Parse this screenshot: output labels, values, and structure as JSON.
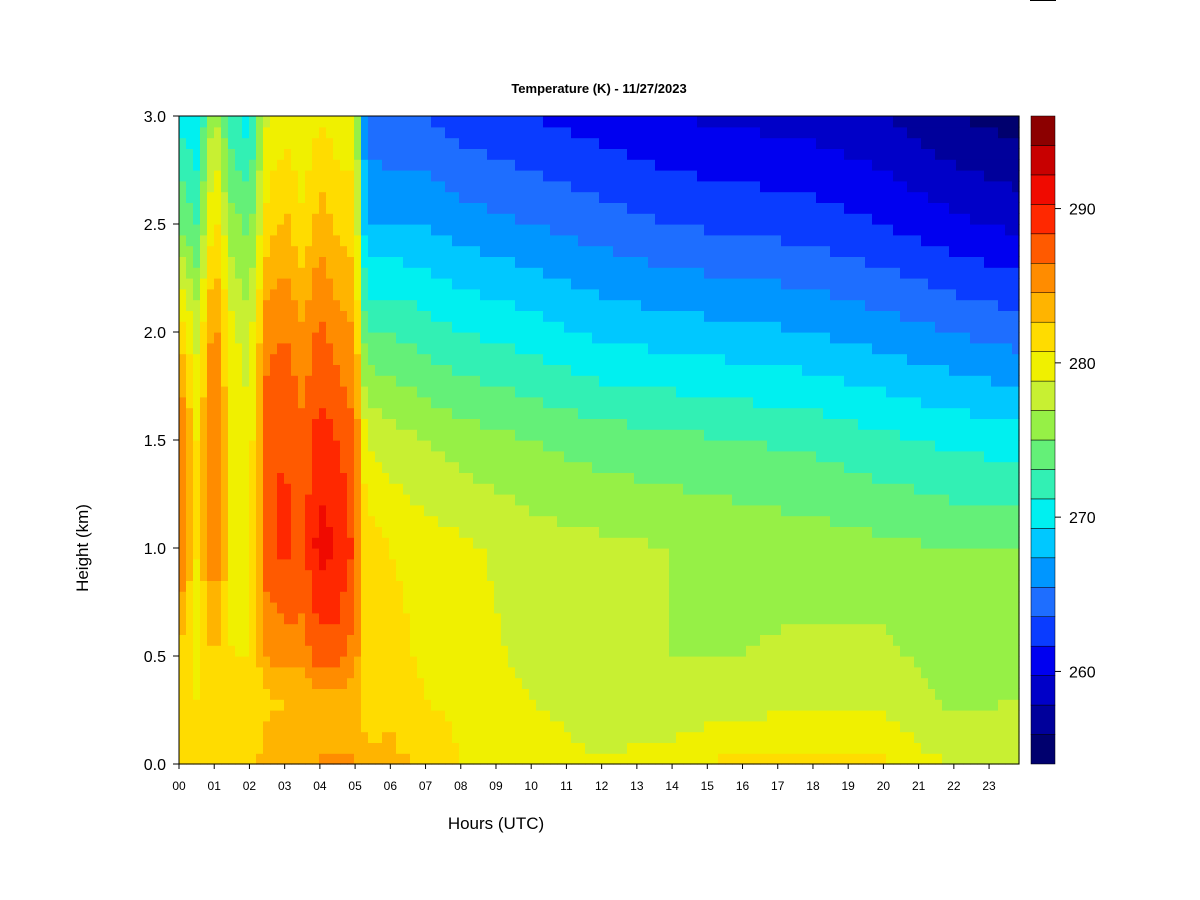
{
  "chart_data": {
    "type": "heatmap",
    "title": "Temperature (K) - 11/27/2023",
    "xlabel": "Hours (UTC)",
    "ylabel": "Height (km)",
    "x_unit": "hours UTC",
    "xlim": [
      0,
      23.85
    ],
    "ylim": [
      0.0,
      3.0
    ],
    "x_ticks": [
      "00",
      "01",
      "02",
      "03",
      "04",
      "05",
      "06",
      "07",
      "08",
      "09",
      "10",
      "11",
      "12",
      "13",
      "14",
      "15",
      "16",
      "17",
      "18",
      "19",
      "20",
      "21",
      "22",
      "23"
    ],
    "y_ticks": [
      "0.0",
      "0.5",
      "1.0",
      "1.5",
      "2.0",
      "2.5",
      "3.0"
    ],
    "colorbar": {
      "label": "Temperature (K)",
      "range": [
        254,
        296
      ],
      "step": 2,
      "ticks": [
        260,
        270,
        280,
        290
      ],
      "colors": [
        "#00006e",
        "#00009b",
        "#0000c8",
        "#0000f0",
        "#0a3cff",
        "#1e6eff",
        "#0096ff",
        "#00c8ff",
        "#00f0f0",
        "#32f0b4",
        "#64f078",
        "#96f046",
        "#c8f032",
        "#f0f000",
        "#ffdc00",
        "#ffb400",
        "#ff8c00",
        "#ff5a00",
        "#ff2800",
        "#f00a00",
        "#c80000",
        "#8c0000"
      ]
    },
    "columns": [
      {
        "hour": 0.0,
        "surface": 283.0,
        "levels": [
          [
            0.0,
            283.0
          ],
          [
            0.3,
            282.0
          ],
          [
            0.5,
            283.5
          ],
          [
            1.0,
            289.0
          ],
          [
            1.5,
            289.5
          ],
          [
            2.0,
            284.0
          ],
          [
            2.5,
            276.0
          ],
          [
            3.0,
            271.5
          ]
        ]
      },
      {
        "hour": 0.5,
        "surface": 283.0,
        "levels": [
          [
            0.0,
            283.0
          ],
          [
            0.3,
            282.0
          ],
          [
            0.5,
            281.5
          ],
          [
            1.0,
            282.0
          ],
          [
            1.5,
            282.0
          ],
          [
            2.0,
            279.5
          ],
          [
            2.5,
            274.0
          ],
          [
            3.0,
            270.0
          ]
        ]
      },
      {
        "hour": 1.0,
        "surface": 283.0,
        "levels": [
          [
            0.0,
            283.0
          ],
          [
            0.3,
            282.5
          ],
          [
            0.5,
            284.0
          ],
          [
            1.0,
            288.5
          ],
          [
            1.5,
            289.0
          ],
          [
            2.0,
            287.5
          ],
          [
            2.5,
            283.0
          ],
          [
            3.0,
            279.0
          ]
        ]
      },
      {
        "hour": 1.5,
        "surface": 283.0,
        "levels": [
          [
            0.0,
            283.0
          ],
          [
            0.3,
            282.0
          ],
          [
            0.5,
            282.0
          ],
          [
            1.0,
            281.5
          ],
          [
            1.5,
            281.5
          ],
          [
            2.0,
            280.5
          ],
          [
            2.5,
            277.0
          ],
          [
            3.0,
            272.5
          ]
        ]
      },
      {
        "hour": 2.0,
        "surface": 283.0,
        "levels": [
          [
            0.0,
            283.0
          ],
          [
            0.3,
            282.0
          ],
          [
            0.5,
            282.0
          ],
          [
            1.0,
            281.0
          ],
          [
            1.5,
            280.5
          ],
          [
            2.0,
            279.0
          ],
          [
            2.5,
            275.0
          ],
          [
            3.0,
            271.0
          ]
        ]
      },
      {
        "hour": 2.5,
        "surface": 285.0,
        "levels": [
          [
            0.0,
            285.0
          ],
          [
            0.3,
            283.5
          ],
          [
            0.5,
            286.0
          ],
          [
            1.0,
            289.5
          ],
          [
            1.5,
            289.5
          ],
          [
            2.0,
            287.5
          ],
          [
            2.5,
            283.0
          ],
          [
            3.0,
            280.0
          ]
        ]
      },
      {
        "hour": 3.0,
        "surface": 285.0,
        "levels": [
          [
            0.0,
            285.0
          ],
          [
            0.3,
            284.0
          ],
          [
            0.5,
            287.0
          ],
          [
            1.0,
            290.5
          ],
          [
            1.5,
            290.0
          ],
          [
            2.0,
            288.0
          ],
          [
            2.5,
            284.5
          ],
          [
            3.0,
            281.0
          ]
        ]
      },
      {
        "hour": 3.5,
        "surface": 285.0,
        "levels": [
          [
            0.0,
            285.0
          ],
          [
            0.3,
            284.0
          ],
          [
            0.5,
            287.0
          ],
          [
            1.0,
            289.5
          ],
          [
            1.5,
            288.5
          ],
          [
            2.0,
            286.5
          ],
          [
            2.5,
            282.5
          ],
          [
            3.0,
            280.0
          ]
        ]
      },
      {
        "hour": 4.0,
        "surface": 286.0,
        "levels": [
          [
            0.0,
            286.0
          ],
          [
            0.3,
            285.0
          ],
          [
            0.5,
            289.0
          ],
          [
            1.0,
            293.0
          ],
          [
            1.5,
            291.0
          ],
          [
            2.0,
            288.5
          ],
          [
            2.5,
            285.0
          ],
          [
            3.0,
            282.0
          ]
        ]
      },
      {
        "hour": 4.5,
        "surface": 286.0,
        "levels": [
          [
            0.0,
            286.0
          ],
          [
            0.3,
            285.0
          ],
          [
            0.5,
            289.0
          ],
          [
            1.0,
            292.0
          ],
          [
            1.5,
            290.0
          ],
          [
            2.0,
            287.0
          ],
          [
            2.5,
            283.5
          ],
          [
            3.0,
            281.0
          ]
        ]
      },
      {
        "hour": 5.0,
        "surface": 286.0,
        "levels": [
          [
            0.0,
            286.0
          ],
          [
            0.3,
            285.0
          ],
          [
            0.5,
            287.0
          ],
          [
            1.0,
            289.5
          ],
          [
            1.5,
            288.5
          ],
          [
            2.0,
            286.0
          ],
          [
            2.5,
            283.0
          ],
          [
            3.0,
            280.5
          ]
        ]
      },
      {
        "hour": 5.3,
        "surface": 284.5,
        "levels": [
          [
            0.0,
            284.5
          ],
          [
            0.3,
            283.0
          ],
          [
            0.5,
            283.0
          ],
          [
            1.0,
            283.0
          ],
          [
            1.5,
            280.0
          ],
          [
            2.0,
            274.0
          ],
          [
            2.5,
            268.0
          ],
          [
            3.0,
            265.0
          ]
        ]
      },
      {
        "hour": 6.0,
        "surface": 284.5,
        "levels": [
          [
            0.0,
            284.5
          ],
          [
            0.3,
            283.5
          ],
          [
            0.5,
            283.0
          ],
          [
            1.0,
            282.0
          ],
          [
            1.5,
            279.0
          ],
          [
            2.0,
            274.0
          ],
          [
            2.5,
            268.0
          ],
          [
            3.0,
            264.0
          ]
        ]
      },
      {
        "hour": 7.0,
        "surface": 283.5,
        "levels": [
          [
            0.0,
            283.5
          ],
          [
            0.3,
            282.0
          ],
          [
            0.5,
            281.5
          ],
          [
            1.0,
            281.0
          ],
          [
            1.5,
            278.0
          ],
          [
            2.0,
            273.0
          ],
          [
            2.5,
            268.0
          ],
          [
            3.0,
            264.0
          ]
        ]
      },
      {
        "hour": 8.0,
        "surface": 282.0,
        "levels": [
          [
            0.0,
            282.0
          ],
          [
            0.3,
            281.5
          ],
          [
            0.5,
            281.0
          ],
          [
            1.0,
            280.5
          ],
          [
            1.5,
            277.0
          ],
          [
            2.0,
            272.0
          ],
          [
            2.5,
            267.0
          ],
          [
            3.0,
            263.0
          ]
        ]
      },
      {
        "hour": 10.0,
        "surface": 281.0,
        "levels": [
          [
            0.0,
            281.0
          ],
          [
            0.3,
            280.0
          ],
          [
            0.5,
            279.5
          ],
          [
            1.0,
            279.0
          ],
          [
            1.5,
            276.0
          ],
          [
            2.0,
            271.0
          ],
          [
            2.5,
            266.0
          ],
          [
            3.0,
            262.0
          ]
        ]
      },
      {
        "hour": 12.0,
        "surface": 280.0,
        "levels": [
          [
            0.0,
            280.0
          ],
          [
            0.3,
            279.0
          ],
          [
            0.5,
            278.5
          ],
          [
            1.0,
            278.5
          ],
          [
            1.5,
            275.0
          ],
          [
            2.0,
            269.5
          ],
          [
            2.5,
            265.0
          ],
          [
            3.0,
            261.0
          ]
        ]
      },
      {
        "hour": 14.0,
        "surface": 281.0,
        "levels": [
          [
            0.0,
            281.0
          ],
          [
            0.3,
            278.5
          ],
          [
            0.5,
            278.0
          ],
          [
            1.0,
            278.0
          ],
          [
            1.5,
            274.5
          ],
          [
            2.0,
            269.0
          ],
          [
            2.5,
            264.0
          ],
          [
            3.0,
            260.0
          ]
        ]
      },
      {
        "hour": 16.0,
        "surface": 282.5,
        "levels": [
          [
            0.0,
            282.5
          ],
          [
            0.3,
            279.0
          ],
          [
            0.5,
            278.0
          ],
          [
            1.0,
            277.5
          ],
          [
            1.5,
            274.0
          ],
          [
            2.0,
            268.5
          ],
          [
            2.5,
            263.5
          ],
          [
            3.0,
            259.5
          ]
        ]
      },
      {
        "hour": 18.0,
        "surface": 282.5,
        "levels": [
          [
            0.0,
            282.5
          ],
          [
            0.3,
            279.5
          ],
          [
            0.5,
            278.5
          ],
          [
            1.0,
            277.0
          ],
          [
            1.5,
            273.5
          ],
          [
            2.0,
            268.0
          ],
          [
            2.5,
            263.0
          ],
          [
            3.0,
            259.0
          ]
        ]
      },
      {
        "hour": 20.0,
        "surface": 282.0,
        "levels": [
          [
            0.0,
            282.0
          ],
          [
            0.3,
            279.5
          ],
          [
            0.5,
            278.5
          ],
          [
            1.0,
            276.5
          ],
          [
            1.5,
            272.5
          ],
          [
            2.0,
            267.0
          ],
          [
            2.5,
            262.0
          ],
          [
            3.0,
            258.0
          ]
        ]
      },
      {
        "hour": 22.0,
        "surface": 279.5,
        "levels": [
          [
            0.0,
            279.5
          ],
          [
            0.3,
            277.5
          ],
          [
            0.5,
            277.0
          ],
          [
            1.0,
            276.0
          ],
          [
            1.5,
            271.5
          ],
          [
            2.0,
            266.0
          ],
          [
            2.5,
            260.5
          ],
          [
            3.0,
            256.0
          ]
        ]
      },
      {
        "hour": 23.85,
        "surface": 279.5,
        "levels": [
          [
            0.0,
            279.5
          ],
          [
            0.3,
            278.0
          ],
          [
            0.5,
            277.5
          ],
          [
            1.0,
            276.0
          ],
          [
            1.5,
            271.0
          ],
          [
            2.0,
            265.0
          ],
          [
            2.5,
            259.5
          ],
          [
            3.0,
            255.0
          ]
        ]
      }
    ]
  }
}
